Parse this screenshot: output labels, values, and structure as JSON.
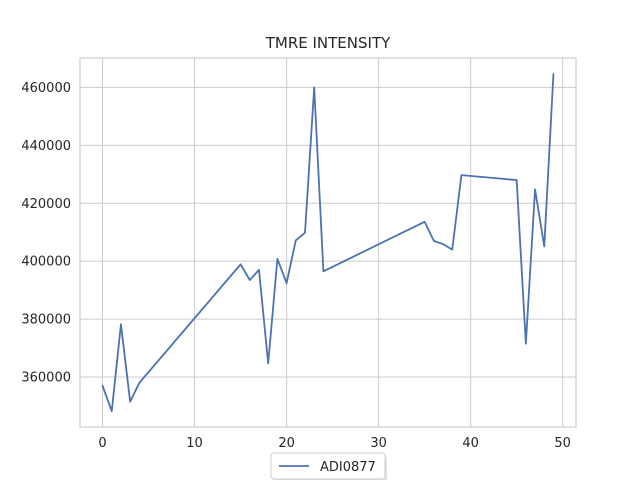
{
  "chart_data": {
    "type": "line",
    "title": "TMRE INTENSITY",
    "xlabel": "",
    "ylabel": "",
    "xlim": [
      -2.45,
      51.45
    ],
    "ylim": [
      342750,
      470150
    ],
    "xticks": [
      0,
      10,
      20,
      30,
      40,
      50
    ],
    "yticks": [
      360000,
      380000,
      400000,
      420000,
      440000,
      460000
    ],
    "grid": true,
    "legend_position": "bottom-center",
    "series": [
      {
        "name": "ADI0877",
        "color": "#4c72b0",
        "x": [
          0,
          1,
          2,
          3,
          4,
          15,
          16,
          17,
          18,
          19,
          20,
          21,
          22,
          23,
          24,
          35,
          36,
          37,
          38,
          39,
          45,
          46,
          47,
          48,
          49
        ],
        "y": [
          357000,
          348200,
          378200,
          351500,
          358000,
          398900,
          393500,
          397000,
          364700,
          400800,
          392400,
          407200,
          409800,
          460000,
          396500,
          413600,
          407000,
          405900,
          404000,
          429700,
          428000,
          371500,
          424800,
          405100,
          464600
        ]
      }
    ]
  }
}
